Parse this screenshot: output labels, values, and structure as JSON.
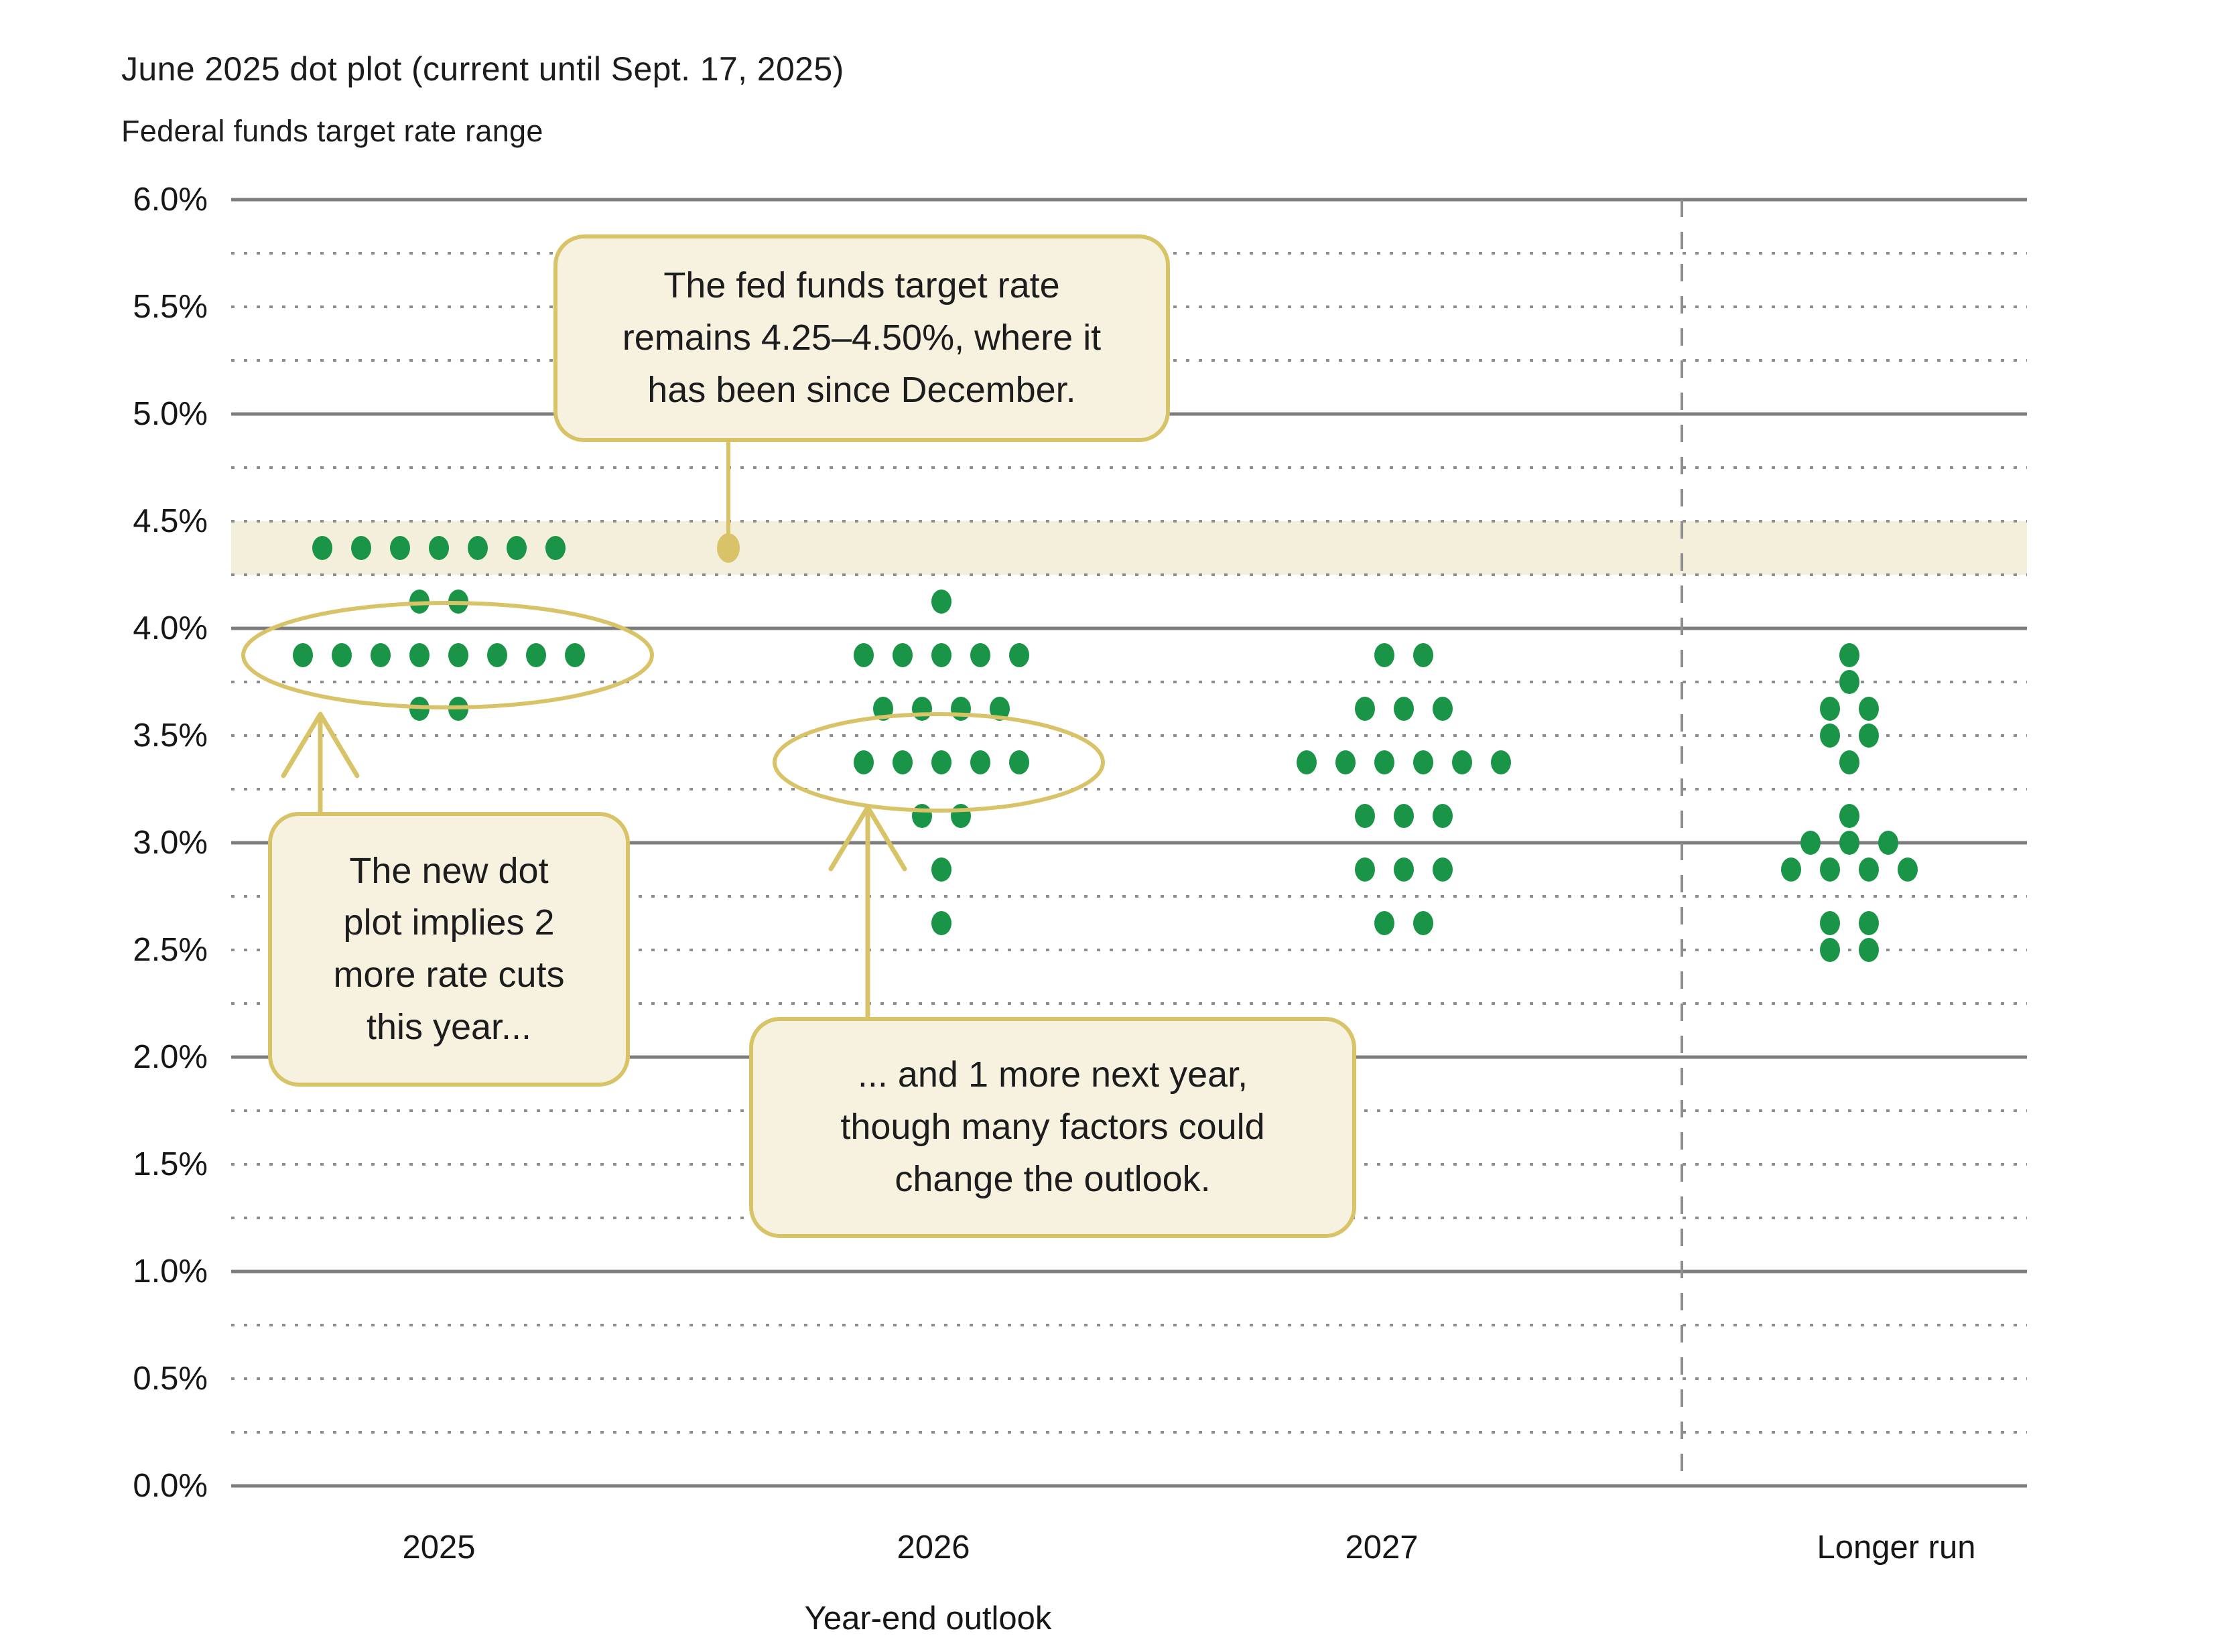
{
  "header": {
    "title": "June 2025 dot plot (current until Sept. 17, 2025)",
    "subtitle": "Federal funds target rate range"
  },
  "y_axis": {
    "labels": [
      "6.0%",
      "5.5%",
      "5.0%",
      "4.5%",
      "4.0%",
      "3.5%",
      "3.0%",
      "2.5%",
      "2.0%",
      "1.5%",
      "1.0%",
      "0.5%",
      "0.0%"
    ]
  },
  "x_axis": {
    "categories": [
      "2025",
      "2026",
      "2027",
      "Longer run"
    ],
    "title": "Year-end outlook"
  },
  "annotations": {
    "current_rate": {
      "lines": [
        "The fed funds target rate",
        "remains 4.25–4.50%, where it",
        "has been since December."
      ]
    },
    "this_year": {
      "lines": [
        "The new dot",
        "plot implies 2",
        "more rate cuts",
        "this year..."
      ]
    },
    "next_year": {
      "lines": [
        "... and 1 more next year,",
        "though many factors could",
        "change the outlook."
      ]
    }
  },
  "colors": {
    "dot_green": "#1a9447",
    "gold": "#d8c369",
    "callout_fill": "#f6f2df",
    "band_fill": "#f3efdb",
    "grid_solid": "#7d7d7d",
    "grid_dotted": "#8d8d8d",
    "text": "#1d1d1d"
  },
  "chart_data": {
    "type": "scatter",
    "subtype": "fomc-dot-plot",
    "title": "June 2025 dot plot (current until Sept. 17, 2025)",
    "ylabel": "Federal funds target rate range",
    "xlabel": "Year-end outlook",
    "y_range": [
      0.0,
      6.0
    ],
    "y_tick_step": 0.5,
    "y_grid_step": 0.25,
    "grid": true,
    "legend": "none",
    "highlight_band": {
      "from": 4.25,
      "to": 4.5
    },
    "categories": [
      "2025",
      "2026",
      "2027",
      "Longer run"
    ],
    "series": [
      {
        "category": "2025",
        "dots": [
          {
            "value": 4.375,
            "count": 7
          },
          {
            "value": 4.125,
            "count": 2
          },
          {
            "value": 3.875,
            "count": 8
          },
          {
            "value": 3.625,
            "count": 2
          }
        ]
      },
      {
        "category": "2026",
        "dots": [
          {
            "value": 4.125,
            "count": 1
          },
          {
            "value": 3.875,
            "count": 5
          },
          {
            "value": 3.625,
            "count": 4
          },
          {
            "value": 3.375,
            "count": 5
          },
          {
            "value": 3.125,
            "count": 2
          },
          {
            "value": 2.875,
            "count": 1
          },
          {
            "value": 2.625,
            "count": 1
          }
        ]
      },
      {
        "category": "2027",
        "dots": [
          {
            "value": 3.875,
            "count": 2
          },
          {
            "value": 3.625,
            "count": 3
          },
          {
            "value": 3.375,
            "count": 6
          },
          {
            "value": 3.125,
            "count": 3
          },
          {
            "value": 2.875,
            "count": 3
          },
          {
            "value": 2.625,
            "count": 2
          }
        ]
      },
      {
        "category": "Longer run",
        "dots": [
          {
            "value": 3.875,
            "count": 1
          },
          {
            "value": 3.75,
            "count": 1
          },
          {
            "value": 3.625,
            "count": 2
          },
          {
            "value": 3.5,
            "count": 2
          },
          {
            "value": 3.375,
            "count": 1
          },
          {
            "value": 3.125,
            "count": 1
          },
          {
            "value": 3.0,
            "count": 3
          },
          {
            "value": 2.875,
            "count": 4
          },
          {
            "value": 2.625,
            "count": 2
          },
          {
            "value": 2.5,
            "count": 2
          }
        ]
      }
    ],
    "circled": [
      {
        "category": "2025",
        "value": 3.875
      },
      {
        "category": "2026",
        "value": 3.375
      }
    ],
    "callout_marker": {
      "category_x": 1087,
      "value": 4.375
    }
  }
}
